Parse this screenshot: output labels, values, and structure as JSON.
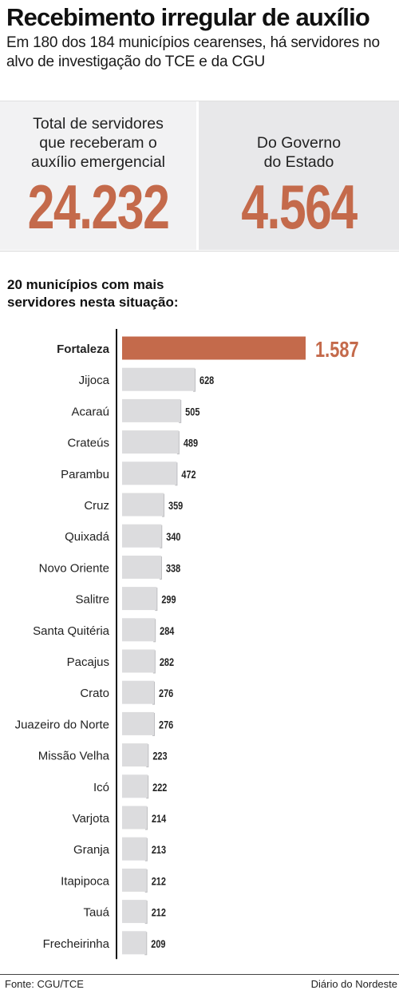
{
  "header": {
    "title": "Recebimento irregular de auxílio",
    "subtitle": "Em 180 dos 184 municípios cearenses, há servidores no alvo de investigação do TCE e da CGU"
  },
  "stats": {
    "total_label_line1": "Total de servidores",
    "total_label_line2": "que receberam o",
    "total_label_line3": "auxílio emergencial",
    "total_value": "24.232",
    "state_label_line1": "Do Governo",
    "state_label_line2": "do Estado",
    "state_value": "4.564"
  },
  "chart_heading": {
    "line1": "20 municípios com mais",
    "line2": "servidores nesta situação:"
  },
  "colors": {
    "accent": "#c46a4b",
    "bar": "#dcdcde",
    "bar_shadow": "#bfbfc2",
    "axis": "#111111"
  },
  "chart_data": {
    "type": "bar",
    "orientation": "horizontal",
    "title": "20 municípios com mais servidores nesta situação:",
    "categories": [
      "Fortaleza",
      "Jijoca",
      "Acaraú",
      "Crateús",
      "Parambu",
      "Cruz",
      "Quixadá",
      "Novo Oriente",
      "Salitre",
      "Santa Quitéria",
      "Pacajus",
      "Crato",
      "Juazeiro do Norte",
      "Missão Velha",
      "Icó",
      "Varjota",
      "Granja",
      "Itapipoca",
      "Tauá",
      "Frecheirinha"
    ],
    "values": [
      1587,
      628,
      505,
      489,
      472,
      359,
      340,
      338,
      299,
      284,
      282,
      276,
      276,
      223,
      222,
      214,
      213,
      212,
      212,
      209
    ],
    "value_labels": [
      "1.587",
      "628",
      "505",
      "489",
      "472",
      "359",
      "340",
      "338",
      "299",
      "284",
      "282",
      "276",
      "276",
      "223",
      "222",
      "214",
      "213",
      "212",
      "212",
      "209"
    ],
    "highlight": "Fortaleza",
    "grid": false,
    "legend": "none"
  },
  "footer": {
    "source": "Fonte:  CGU/TCE",
    "credit": "Diário do Nordeste"
  }
}
